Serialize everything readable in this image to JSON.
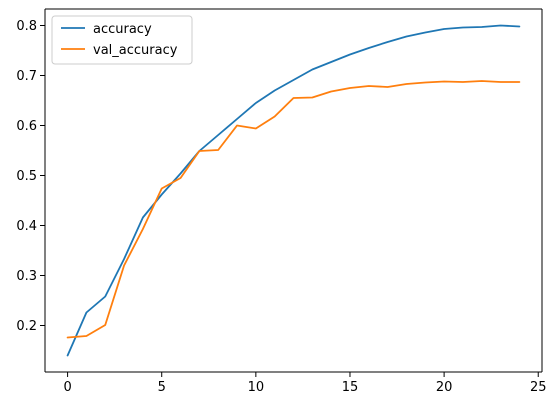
{
  "chart_data": {
    "type": "line",
    "title": "",
    "xlabel": "",
    "ylabel": "",
    "xlim": [
      -1.2,
      25.2
    ],
    "ylim": [
      0.107,
      0.833
    ],
    "x_ticks": [
      0,
      5,
      10,
      15,
      20,
      25
    ],
    "y_ticks": [
      0.2,
      0.3,
      0.4,
      0.5,
      0.6,
      0.7,
      0.8
    ],
    "x_tick_labels": [
      "0",
      "5",
      "10",
      "15",
      "20",
      "25"
    ],
    "y_tick_labels": [
      "0.2",
      "0.3",
      "0.4",
      "0.5",
      "0.6",
      "0.7",
      "0.8"
    ],
    "grid": false,
    "legend": {
      "position": "top-left"
    },
    "x": [
      0,
      1,
      2,
      3,
      4,
      5,
      6,
      7,
      8,
      9,
      10,
      11,
      12,
      13,
      14,
      15,
      16,
      17,
      18,
      19,
      20,
      21,
      22,
      23,
      24
    ],
    "series": [
      {
        "name": "accuracy",
        "color": "#1f77b4",
        "values": [
          0.14,
          0.226,
          0.258,
          0.333,
          0.416,
          0.462,
          0.504,
          0.549,
          0.581,
          0.613,
          0.645,
          0.67,
          0.691,
          0.712,
          0.727,
          0.742,
          0.755,
          0.767,
          0.778,
          0.786,
          0.793,
          0.796,
          0.797,
          0.8,
          0.798
        ]
      },
      {
        "name": "val_accuracy",
        "color": "#ff7f0e",
        "values": [
          0.176,
          0.179,
          0.201,
          0.32,
          0.393,
          0.474,
          0.495,
          0.549,
          0.551,
          0.6,
          0.594,
          0.618,
          0.655,
          0.656,
          0.668,
          0.675,
          0.679,
          0.677,
          0.683,
          0.686,
          0.688,
          0.687,
          0.689,
          0.687,
          0.687
        ]
      }
    ]
  }
}
